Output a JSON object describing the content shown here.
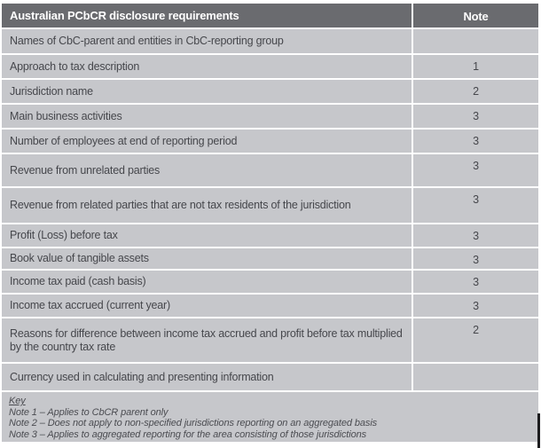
{
  "colors": {
    "header_bg": "#6a6b6f",
    "row_bg": "#c6c7cb",
    "header_text": "#ffffff",
    "body_text": "#46474c"
  },
  "table": {
    "header": {
      "label": "Australian PCbCR disclosure requirements",
      "note": "Note"
    },
    "rows": [
      {
        "label": "Names of CbC-parent and entities in CbC-reporting group",
        "note": ""
      },
      {
        "label": "Approach to tax description",
        "note": "1"
      },
      {
        "label": "Jurisdiction name",
        "note": "2"
      },
      {
        "label": "Main business activities",
        "note": "3"
      },
      {
        "label": "Number of employees at end of reporting period",
        "note": "3"
      },
      {
        "label": "Revenue from unrelated parties",
        "note": "3"
      },
      {
        "label": "Revenue from related parties that are not tax residents of the jurisdiction",
        "note": "3"
      },
      {
        "label": "Profit (Loss) before tax",
        "note": "3"
      },
      {
        "label": "Book value of tangible assets",
        "note": "3"
      },
      {
        "label": "Income tax paid (cash basis)",
        "note": "3"
      },
      {
        "label": "Income tax accrued (current year)",
        "note": "3"
      },
      {
        "label": "Reasons for difference between income tax accrued and profit before tax multiplied by the country tax rate",
        "note": "2"
      },
      {
        "label": "Currency used in calculating and presenting information",
        "note": ""
      }
    ],
    "key": {
      "title": "Key",
      "notes": [
        "Note 1 – Applies to CbCR parent only",
        "Note 2 – Does not apply to non-specified jurisdictions reporting on an aggregated basis",
        "Note 3 – Applies to aggregated reporting for the area consisting of those jurisdictions"
      ]
    }
  }
}
